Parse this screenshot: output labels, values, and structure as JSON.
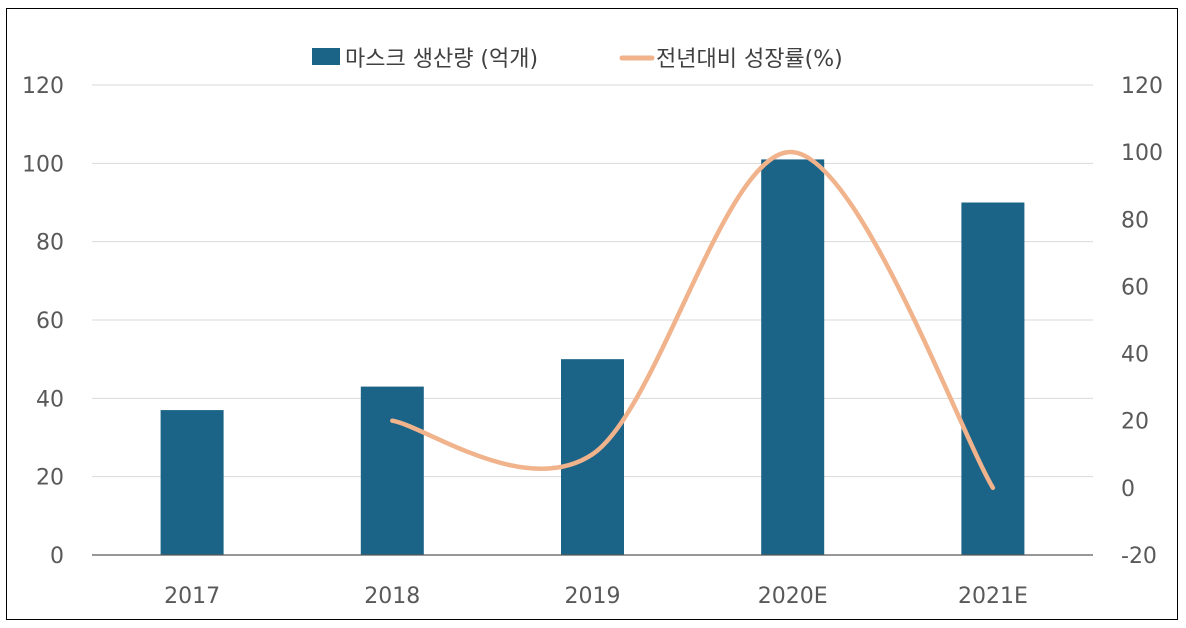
{
  "chart_data": {
    "type": "bar",
    "categories": [
      "2017",
      "2018",
      "2019",
      "2020E",
      "2021E"
    ],
    "series": [
      {
        "name": "마스크 생산량 (억개)",
        "kind": "bar",
        "axis": "left",
        "color": "#1b6487",
        "values": [
          37,
          43,
          50,
          101,
          90
        ]
      },
      {
        "name": "전년대비 성장률(%)",
        "kind": "line",
        "axis": "right",
        "color": "#f0b38c",
        "smooth": true,
        "values": [
          null,
          20,
          10,
          100,
          0
        ]
      }
    ],
    "y_left": {
      "ylim": [
        0,
        120
      ],
      "ticks": [
        0,
        20,
        40,
        60,
        80,
        100,
        120
      ]
    },
    "y_right": {
      "ylim": [
        -20,
        120
      ],
      "ticks": [
        -20,
        0,
        20,
        40,
        60,
        80,
        100,
        120
      ]
    },
    "grid": true,
    "legend": "top-center"
  }
}
